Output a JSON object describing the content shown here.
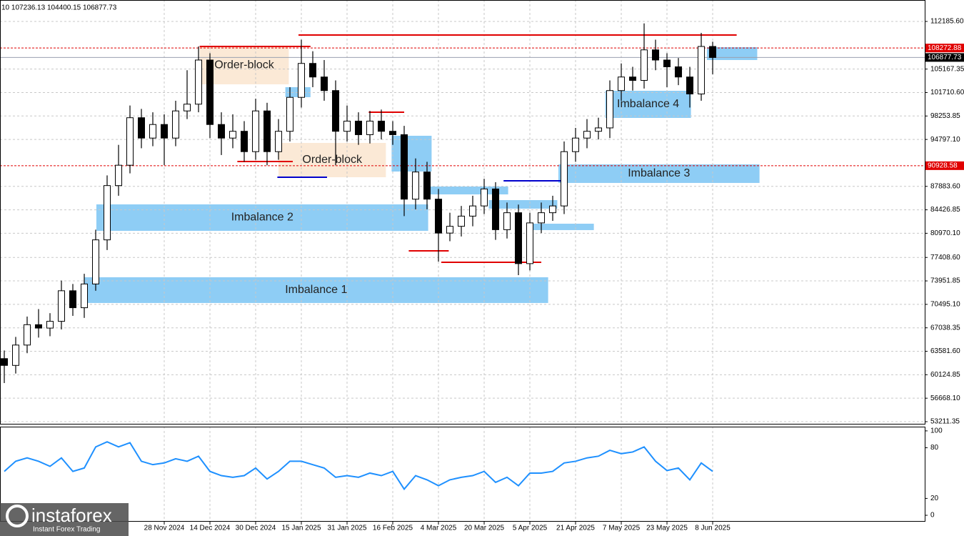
{
  "chart_data": {
    "type": "candlestick",
    "title": "10 107236.13 104400.15 106877.73",
    "xlim": [
      -0.375,
      80.56
    ],
    "ylim": [
      52790,
      114820
    ],
    "grid": true,
    "up_color": "#ffffff",
    "down_color": "#000000",
    "xticks": [
      {
        "value": 14,
        "label": "28 Nov 2024"
      },
      {
        "value": 18,
        "label": "14 Dec 2024"
      },
      {
        "value": 22,
        "label": "30 Dec 2024"
      },
      {
        "value": 26,
        "label": "15 Jan 2025"
      },
      {
        "value": 30,
        "label": "31 Jan 2025"
      },
      {
        "value": 34,
        "label": "16 Feb 2025"
      },
      {
        "value": 38,
        "label": "4 Mar 2025"
      },
      {
        "value": 42,
        "label": "20 Mar 2025"
      },
      {
        "value": 46,
        "label": "5 Apr 2025"
      },
      {
        "value": 50,
        "label": "21 Apr 2025"
      },
      {
        "value": 54,
        "label": "7 May 2025"
      },
      {
        "value": 58,
        "label": "23 May 2025"
      },
      {
        "value": 62,
        "label": "8 Jun 2025"
      }
    ],
    "yticks": [
      {
        "value": 112185.6,
        "label": "112185.60"
      },
      {
        "value": 105167.35,
        "label": "105167.35"
      },
      {
        "value": 101710.6,
        "label": "101710.60"
      },
      {
        "value": 98253.85,
        "label": "98253.85"
      },
      {
        "value": 94797.1,
        "label": "94797.10"
      },
      {
        "value": 87883.6,
        "label": "87883.60"
      },
      {
        "value": 84426.85,
        "label": "84426.85"
      },
      {
        "value": 80970.1,
        "label": "80970.10"
      },
      {
        "value": 77408.6,
        "label": "77408.60"
      },
      {
        "value": 73951.85,
        "label": "73951.85"
      },
      {
        "value": 70495.1,
        "label": "70495.10"
      },
      {
        "value": 67038.35,
        "label": "67038.35"
      },
      {
        "value": 63581.6,
        "label": "63581.60"
      },
      {
        "value": 60124.85,
        "label": "60124.85"
      },
      {
        "value": 56668.1,
        "label": "56668.10"
      },
      {
        "value": 53211.35,
        "label": "53211.35"
      }
    ],
    "open": [
      62500,
      61500,
      64500,
      67500,
      67000,
      68000,
      72500,
      70000,
      73500,
      80000,
      88000,
      91000,
      98000,
      95000,
      97000,
      95000,
      99000,
      100000,
      106500,
      97000,
      95000,
      96000,
      93000,
      99000,
      93000,
      96000,
      101000,
      106000,
      104000,
      102000,
      96000,
      97500,
      95500,
      97500,
      96000,
      95500,
      86000,
      90000,
      86000,
      81000,
      82000,
      83500,
      85000,
      87500,
      81500,
      84000,
      76500,
      82500,
      84000,
      85000,
      93000,
      95000,
      96000,
      96500,
      102000,
      104000,
      103500,
      108000,
      106500,
      105500,
      104000,
      101500,
      108500
    ],
    "high": [
      63700,
      65700,
      68700,
      69800,
      69200,
      74000,
      73500,
      75000,
      81500,
      89500,
      94000,
      99800,
      99300,
      98800,
      98500,
      100500,
      105000,
      108500,
      107500,
      98800,
      98500,
      97500,
      100800,
      100200,
      97800,
      102500,
      109500,
      107800,
      106500,
      103500,
      99800,
      98800,
      99000,
      99200,
      97500,
      96800,
      92000,
      91500,
      87500,
      84000,
      85000,
      86500,
      89000,
      88500,
      85500,
      85200,
      84000,
      85500,
      86500,
      94500,
      96500,
      97800,
      98000,
      103500,
      106000,
      105500,
      111900,
      109500,
      107500,
      106800,
      105500,
      110500,
      109200
    ],
    "low": [
      58900,
      60300,
      63300,
      65600,
      65800,
      66800,
      68800,
      68500,
      72500,
      78500,
      86500,
      89800,
      93500,
      93800,
      91000,
      93800,
      97800,
      98800,
      95000,
      92500,
      93500,
      91500,
      91800,
      91000,
      91800,
      94500,
      99500,
      102500,
      100500,
      91000,
      94500,
      94000,
      94200,
      94800,
      94000,
      83500,
      84500,
      84500,
      76800,
      79800,
      80500,
      82000,
      83800,
      80000,
      80200,
      74800,
      75500,
      81000,
      82800,
      83800,
      91500,
      93500,
      94800,
      95000,
      100500,
      102000,
      102300,
      105000,
      102500,
      102800,
      99500,
      100500,
      104400.15
    ],
    "close": [
      61500,
      64500,
      67500,
      67000,
      68000,
      72500,
      70000,
      73500,
      80000,
      88000,
      91000,
      98000,
      95000,
      97000,
      95000,
      99000,
      100000,
      106500,
      97000,
      95000,
      96000,
      93000,
      99000,
      93000,
      96000,
      101000,
      106000,
      104000,
      102000,
      96000,
      97500,
      95500,
      97500,
      96000,
      95500,
      86000,
      90000,
      86000,
      81000,
      82000,
      83500,
      85000,
      87500,
      81500,
      84000,
      76500,
      82500,
      84000,
      85000,
      93000,
      95000,
      96000,
      96500,
      102000,
      104000,
      103500,
      108000,
      106500,
      105500,
      104000,
      101500,
      108500,
      106877.73
    ],
    "price_lines": [
      {
        "value": 108272.88,
        "color": "#e00000",
        "dashed": true
      },
      {
        "value": 106877.73,
        "color": "#9aa0b0",
        "dashed": false
      },
      {
        "value": 90928.58,
        "color": "#e00000",
        "dashed": true
      }
    ],
    "zones": [
      {
        "label": "Order-block",
        "x": [
          17.1,
          24.9
        ],
        "y": [
          102920,
          108500
        ],
        "color": "#fbe9d6"
      },
      {
        "label": "Order-block",
        "x": [
          24,
          33.4
        ],
        "y": [
          89230,
          94285
        ],
        "color": "#fbe9d6"
      },
      {
        "label": "Imbalance 1",
        "x": [
          7,
          47.6
        ],
        "y": [
          70700,
          74490
        ],
        "color": "#8ecdf5"
      },
      {
        "label": "Imbalance 2",
        "x": [
          8.06,
          37.1
        ],
        "y": [
          81330,
          85230
        ],
        "color": "#8ecdf5"
      },
      {
        "label": "Imbalance 3",
        "x": [
          48.5,
          66.1
        ],
        "y": [
          88390,
          91125
        ],
        "color": "#8ecdf5"
      },
      {
        "label": "Imbalance 4",
        "x": [
          52.6,
          60.1
        ],
        "y": [
          97970,
          101970
        ],
        "color": "#8ecdf5"
      },
      {
        "x": [
          61.5,
          65.9
        ],
        "y": [
          106500,
          108395
        ],
        "color": "#8ecdf5"
      },
      {
        "x": [
          24.6,
          26.8
        ],
        "y": [
          101025,
          102500
        ],
        "color": "#8ecdf5"
      },
      {
        "x": [
          33.9,
          37.4
        ],
        "y": [
          90070,
          95340
        ],
        "color": "#8ecdf5"
      },
      {
        "x": [
          37.1,
          44.1
        ],
        "y": [
          86700,
          87860
        ],
        "color": "#8ecdf5"
      },
      {
        "x": [
          42.4,
          48.4
        ],
        "y": [
          84600,
          85860
        ],
        "color": "#8ecdf5"
      },
      {
        "x": [
          45.9,
          51.6
        ],
        "y": [
          81440,
          82380
        ],
        "color": "#8ecdf5"
      }
    ],
    "levels": [
      {
        "value": 108500,
        "x": [
          17.1,
          26.8
        ],
        "color": "#e00000"
      },
      {
        "value": 110185,
        "x": [
          25.75,
          64.1
        ],
        "color": "#e00000"
      },
      {
        "value": 91550,
        "x": [
          20.4,
          25.25
        ],
        "color": "#e00000"
      },
      {
        "value": 89230,
        "x": [
          23.9,
          28.25
        ],
        "color": "#0000cc"
      },
      {
        "value": 98810,
        "x": [
          31.9,
          35
        ],
        "color": "#e00000"
      },
      {
        "value": 78385,
        "x": [
          35.4,
          38.9
        ],
        "color": "#e00000"
      },
      {
        "value": 76700,
        "x": [
          38.25,
          47
        ],
        "color": "#e00000"
      },
      {
        "value": 88700,
        "x": [
          43.7,
          49.1
        ],
        "color": "#0000cc"
      }
    ],
    "indicator": {
      "type": "line",
      "color": "#1e90ff",
      "ylim": [
        -7.6,
        105
      ],
      "yticks": [
        100,
        80,
        20,
        0
      ],
      "values": [
        52,
        64,
        68,
        64,
        58,
        68,
        52,
        56,
        81,
        87,
        81,
        86,
        64,
        60,
        62,
        67,
        64,
        70,
        52,
        47,
        45,
        47,
        56,
        43,
        52,
        64,
        64,
        60,
        56,
        45,
        47,
        45,
        50,
        47,
        52,
        31,
        47,
        42,
        35,
        42,
        45,
        47,
        52,
        39,
        45,
        35,
        50,
        50,
        52,
        62,
        64,
        68,
        70,
        77,
        73,
        75,
        81,
        64,
        53,
        56,
        42,
        62,
        52
      ]
    }
  },
  "watermark": {
    "brand": "instaforex",
    "tagline": "Instant Forex Trading"
  }
}
